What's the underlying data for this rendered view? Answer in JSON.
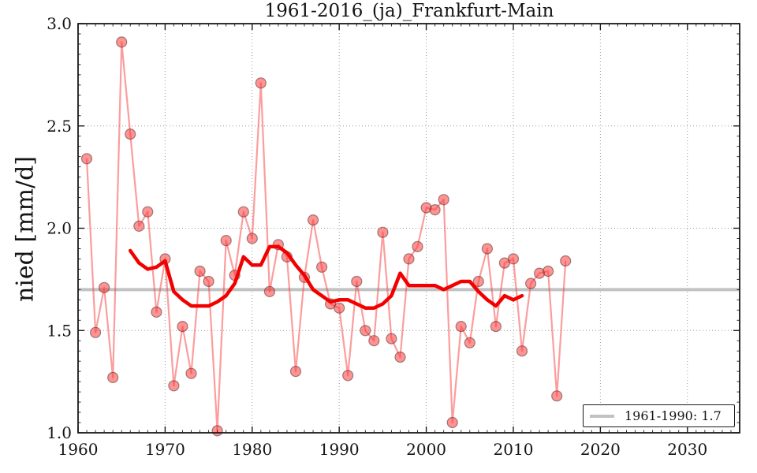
{
  "figure": {
    "title": "1961-2016_(ja)_Frankfurt-Main",
    "ylabel": "nied [mm/d]",
    "legend": {
      "label": "1961-1990: 1.7"
    }
  },
  "chart_data": {
    "type": "line",
    "title": "1961-2016_(ja)_Frankfurt-Main",
    "xlabel": "",
    "ylabel": "nied [mm/d]",
    "xlim": [
      1960,
      2036
    ],
    "ylim": [
      1.0,
      3.0
    ],
    "xticks": [
      1960,
      1970,
      1980,
      1990,
      2000,
      2010,
      2020,
      2030
    ],
    "xtick_labels": [
      "1960",
      "1970",
      "1980",
      "1990",
      "2000",
      "2010",
      "2020",
      "2030"
    ],
    "yticks": [
      1.0,
      1.5,
      2.0,
      2.5,
      3.0
    ],
    "ytick_labels": [
      "1.0",
      "1.5",
      "2.0",
      "2.5",
      "3.0"
    ],
    "grid": true,
    "legend_position": "lower right",
    "series": [
      {
        "name": "annual-values",
        "style": "line+markers",
        "color": "#fa3c3c",
        "opacity": 0.5,
        "x_start": 1961,
        "values": [
          2.34,
          1.49,
          1.71,
          1.27,
          2.91,
          2.46,
          2.01,
          2.08,
          1.59,
          1.85,
          1.23,
          1.52,
          1.29,
          1.79,
          1.74,
          1.01,
          1.94,
          1.77,
          2.08,
          1.95,
          2.71,
          1.69,
          1.92,
          1.86,
          1.3,
          1.76,
          2.04,
          1.81,
          1.63,
          1.61,
          1.28,
          1.74,
          1.5,
          1.45,
          1.98,
          1.46,
          1.37,
          1.85,
          1.91,
          2.1,
          2.09,
          2.14,
          1.05,
          1.52,
          1.44,
          1.74,
          1.9,
          1.52,
          1.83,
          1.85,
          1.4,
          1.73,
          1.78,
          1.79,
          1.18,
          1.84
        ]
      },
      {
        "name": "running-mean",
        "style": "line",
        "color": "#f20000",
        "width": 4.5,
        "x_start": 1966,
        "values": [
          1.89,
          1.83,
          1.8,
          1.81,
          1.84,
          1.69,
          1.65,
          1.62,
          1.62,
          1.62,
          1.64,
          1.67,
          1.73,
          1.86,
          1.82,
          1.82,
          1.91,
          1.91,
          1.88,
          1.82,
          1.77,
          1.7,
          1.67,
          1.64,
          1.65,
          1.65,
          1.63,
          1.61,
          1.61,
          1.63,
          1.67,
          1.78,
          1.72,
          1.72,
          1.72,
          1.72,
          1.7,
          1.72,
          1.74,
          1.74,
          1.69,
          1.65,
          1.62,
          1.67,
          1.65,
          1.67
        ]
      },
      {
        "name": "reference-1961-1990",
        "style": "hline",
        "color": "#c2c2c2",
        "width": 4,
        "value": 1.7,
        "label": "1961-1990: 1.7"
      }
    ]
  }
}
